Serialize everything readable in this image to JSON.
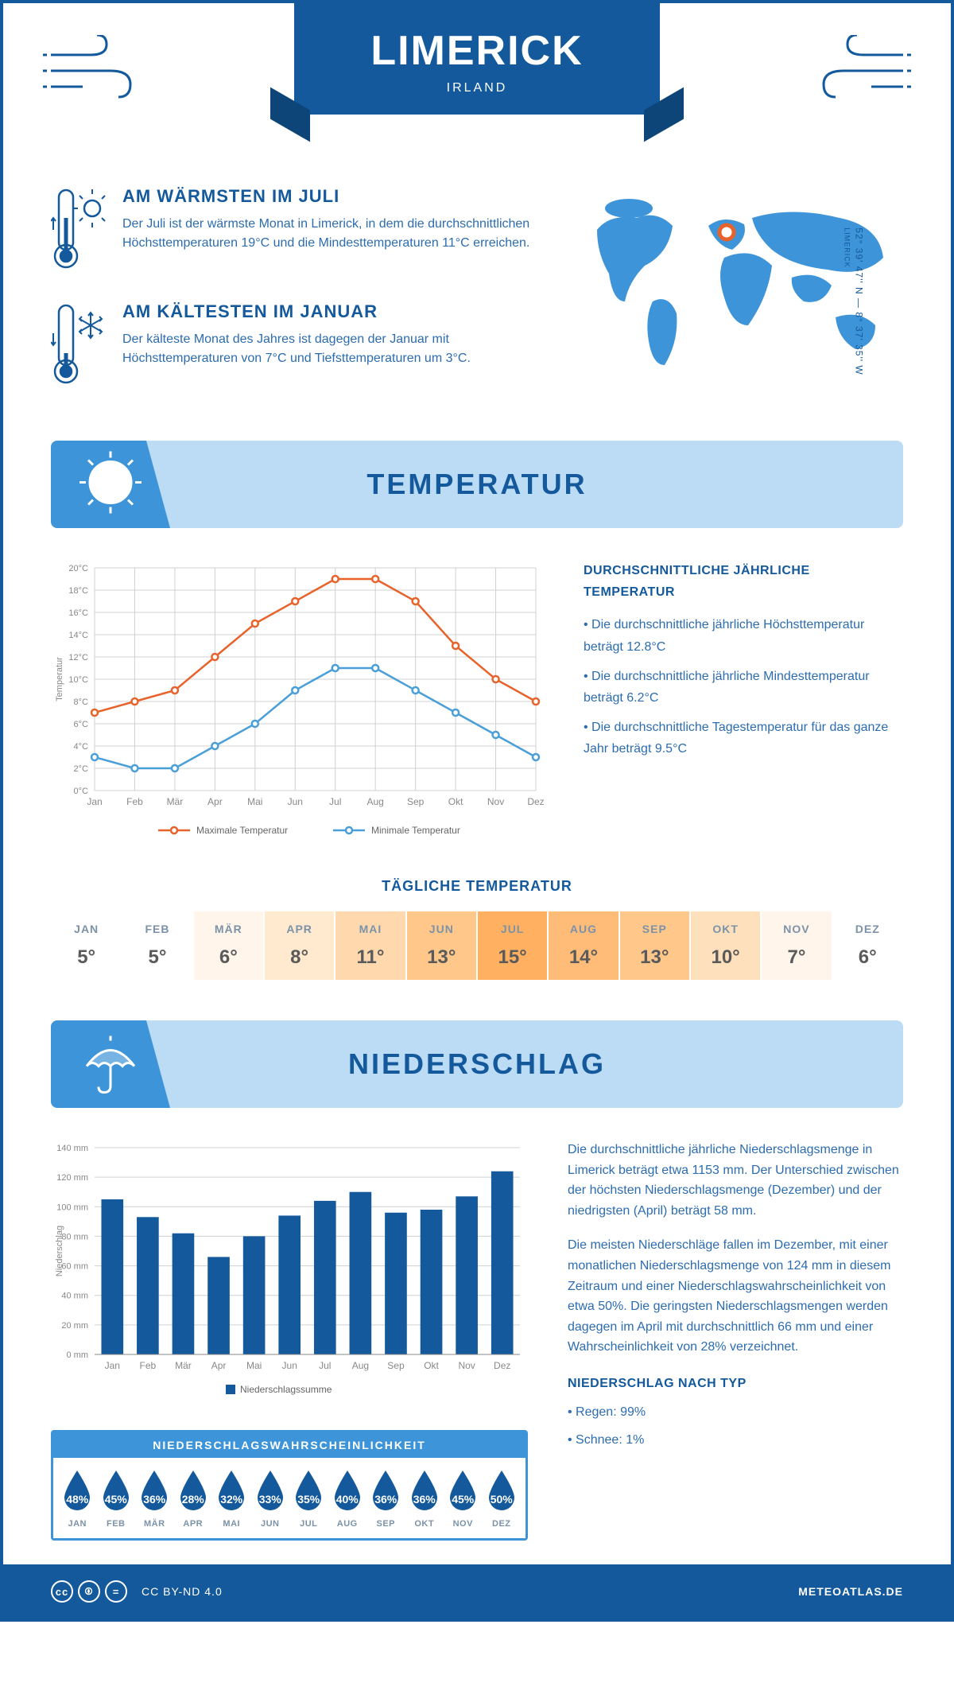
{
  "header": {
    "city": "LIMERICK",
    "country": "IRLAND",
    "coords": "52° 39' 47'' N — 8° 37' 35'' W",
    "coords_label": "LIMERICK"
  },
  "colors": {
    "primary": "#13599c",
    "secondary": "#3d94d8",
    "light": "#bcdcf5",
    "orange": "#e8632b",
    "blue_line": "#4a9fd8",
    "grid": "#d0d0d0",
    "text_muted": "#2c6cb0"
  },
  "intro": {
    "warm": {
      "heading": "AM WÄRMSTEN IM JULI",
      "body": "Der Juli ist der wärmste Monat in Limerick, in dem die durchschnittlichen Höchsttemperaturen 19°C und die Mindesttemperaturen 11°C erreichen."
    },
    "cold": {
      "heading": "AM KÄLTESTEN IM JANUAR",
      "body": "Der kälteste Monat des Jahres ist dagegen der Januar mit Höchsttemperaturen von 7°C und Tiefsttemperaturen um 3°C."
    }
  },
  "section_titles": {
    "temp": "TEMPERATUR",
    "precip": "NIEDERSCHLAG"
  },
  "temp_chart": {
    "months": [
      "Jan",
      "Feb",
      "Mär",
      "Apr",
      "Mai",
      "Jun",
      "Jul",
      "Aug",
      "Sep",
      "Okt",
      "Nov",
      "Dez"
    ],
    "max": [
      7,
      8,
      9,
      12,
      15,
      17,
      19,
      19,
      17,
      13,
      10,
      8
    ],
    "min": [
      3,
      2,
      2,
      4,
      6,
      9,
      11,
      11,
      9,
      7,
      5,
      3
    ],
    "ylim": [
      0,
      20
    ],
    "ytick_step": 2,
    "max_color": "#e8632b",
    "min_color": "#4a9fd8",
    "axis_label": "Temperatur",
    "legend_max": "Maximale Temperatur",
    "legend_min": "Minimale Temperatur"
  },
  "temp_text": {
    "heading": "DURCHSCHNITTLICHE JÄHRLICHE TEMPERATUR",
    "lines": [
      "• Die durchschnittliche jährliche Höchsttemperatur beträgt 12.8°C",
      "• Die durchschnittliche jährliche Mindesttemperatur beträgt 6.2°C",
      "• Die durchschnittliche Tagestemperatur für das ganze Jahr beträgt 9.5°C"
    ]
  },
  "daily": {
    "heading": "TÄGLICHE TEMPERATUR",
    "months": [
      "JAN",
      "FEB",
      "MÄR",
      "APR",
      "MAI",
      "JUN",
      "JUL",
      "AUG",
      "SEP",
      "OKT",
      "NOV",
      "DEZ"
    ],
    "values": [
      "5°",
      "5°",
      "6°",
      "8°",
      "11°",
      "13°",
      "15°",
      "14°",
      "13°",
      "10°",
      "7°",
      "6°"
    ],
    "bg_colors": [
      "#ffffff",
      "#ffffff",
      "#fff5ea",
      "#ffe9cf",
      "#ffd9ad",
      "#ffc88a",
      "#ffb061",
      "#ffbc78",
      "#ffc88a",
      "#ffe0bc",
      "#fff5ea",
      "#ffffff"
    ]
  },
  "precip_chart": {
    "months": [
      "Jan",
      "Feb",
      "Mär",
      "Apr",
      "Mai",
      "Jun",
      "Jul",
      "Aug",
      "Sep",
      "Okt",
      "Nov",
      "Dez"
    ],
    "values": [
      105,
      93,
      82,
      66,
      80,
      94,
      104,
      110,
      96,
      98,
      107,
      124
    ],
    "ylim": [
      0,
      140
    ],
    "ytick_step": 20,
    "bar_color": "#13599c",
    "axis_label": "Niederschlag",
    "legend": "Niederschlagssumme"
  },
  "precip_text": {
    "p1": "Die durchschnittliche jährliche Niederschlagsmenge in Limerick beträgt etwa 1153 mm. Der Unterschied zwischen der höchsten Niederschlagsmenge (Dezember) und der niedrigsten (April) beträgt 58 mm.",
    "p2": "Die meisten Niederschläge fallen im Dezember, mit einer monatlichen Niederschlagsmenge von 124 mm in diesem Zeitraum und einer Niederschlagswahrscheinlichkeit von etwa 50%. Die geringsten Niederschlagsmengen werden dagegen im April mit durchschnittlich 66 mm und einer Wahrscheinlichkeit von 28% verzeichnet.",
    "subhead": "NIEDERSCHLAG NACH TYP",
    "type_lines": [
      "• Regen: 99%",
      "• Schnee: 1%"
    ]
  },
  "probability": {
    "title": "NIEDERSCHLAGSWAHRSCHEINLICHKEIT",
    "months": [
      "JAN",
      "FEB",
      "MÄR",
      "APR",
      "MAI",
      "JUN",
      "JUL",
      "AUG",
      "SEP",
      "OKT",
      "NOV",
      "DEZ"
    ],
    "percents": [
      "48%",
      "45%",
      "36%",
      "28%",
      "32%",
      "33%",
      "35%",
      "40%",
      "36%",
      "36%",
      "45%",
      "50%"
    ],
    "drop_color": "#13599c"
  },
  "footer": {
    "license": "CC BY-ND 4.0",
    "site": "METEOATLAS.DE"
  }
}
